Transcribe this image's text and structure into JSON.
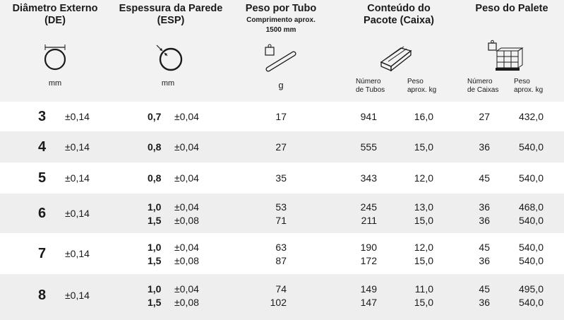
{
  "header": {
    "de_title_1": "Diâmetro Externo",
    "de_title_2": "(DE)",
    "esp_title_1": "Espessura da Parede",
    "esp_title_2": "(ESP)",
    "peso_tubo_title": "Peso por Tubo",
    "peso_tubo_sub_1": "Comprimento aprox.",
    "peso_tubo_sub_2": "1500 mm",
    "conteudo_title_1": "Conteúdo do",
    "conteudo_title_2": "Pacote (Caixa)",
    "palete_title": "Peso do Palete",
    "unit_de": "mm",
    "unit_esp": "mm",
    "unit_peso": "g",
    "numero_tubos_1": "Número",
    "numero_tubos_2": "de Tubos",
    "peso_kg_1": "Peso",
    "peso_kg_2": "aprox. kg",
    "numero_caixas_1": "Número",
    "numero_caixas_2": "de Caixas",
    "peso_palete_kg_1": "Peso",
    "peso_palete_kg_2": "aprox. kg"
  },
  "icons": {
    "de": "outer-diameter-circle-icon",
    "esp": "wall-thickness-circle-icon",
    "peso": "weight-tube-icon",
    "pacote": "box-of-tubes-icon",
    "palete": "pallet-weight-icon"
  },
  "rows": [
    {
      "de": "3",
      "de_tol": "±0,14",
      "esp": [
        {
          "val": "0,7",
          "tol": "±0,04",
          "peso": "17",
          "tubos": "941",
          "kg": "16,0",
          "caixas": "27",
          "palete": "432,0"
        }
      ]
    },
    {
      "de": "4",
      "de_tol": "±0,14",
      "esp": [
        {
          "val": "0,8",
          "tol": "±0,04",
          "peso": "27",
          "tubos": "555",
          "kg": "15,0",
          "caixas": "36",
          "palete": "540,0"
        }
      ]
    },
    {
      "de": "5",
      "de_tol": "±0,14",
      "esp": [
        {
          "val": "0,8",
          "tol": "±0,04",
          "peso": "35",
          "tubos": "343",
          "kg": "12,0",
          "caixas": "45",
          "palete": "540,0"
        }
      ]
    },
    {
      "de": "6",
      "de_tol": "±0,14",
      "esp": [
        {
          "val": "1,0",
          "tol": "±0,04",
          "peso": "53",
          "tubos": "245",
          "kg": "13,0",
          "caixas": "36",
          "palete": "468,0"
        },
        {
          "val": "1,5",
          "tol": "±0,08",
          "peso": "71",
          "tubos": "211",
          "kg": "15,0",
          "caixas": "36",
          "palete": "540,0"
        }
      ]
    },
    {
      "de": "7",
      "de_tol": "±0,14",
      "esp": [
        {
          "val": "1,0",
          "tol": "±0,04",
          "peso": "63",
          "tubos": "190",
          "kg": "12,0",
          "caixas": "45",
          "palete": "540,0"
        },
        {
          "val": "1,5",
          "tol": "±0,08",
          "peso": "87",
          "tubos": "172",
          "kg": "15,0",
          "caixas": "36",
          "palete": "540,0"
        }
      ]
    },
    {
      "de": "8",
      "de_tol": "±0,14",
      "esp": [
        {
          "val": "1,0",
          "tol": "±0,04",
          "peso": "74",
          "tubos": "149",
          "kg": "11,0",
          "caixas": "45",
          "palete": "495,0"
        },
        {
          "val": "1,5",
          "tol": "±0,08",
          "peso": "102",
          "tubos": "147",
          "kg": "15,0",
          "caixas": "36",
          "palete": "540,0"
        }
      ]
    }
  ]
}
